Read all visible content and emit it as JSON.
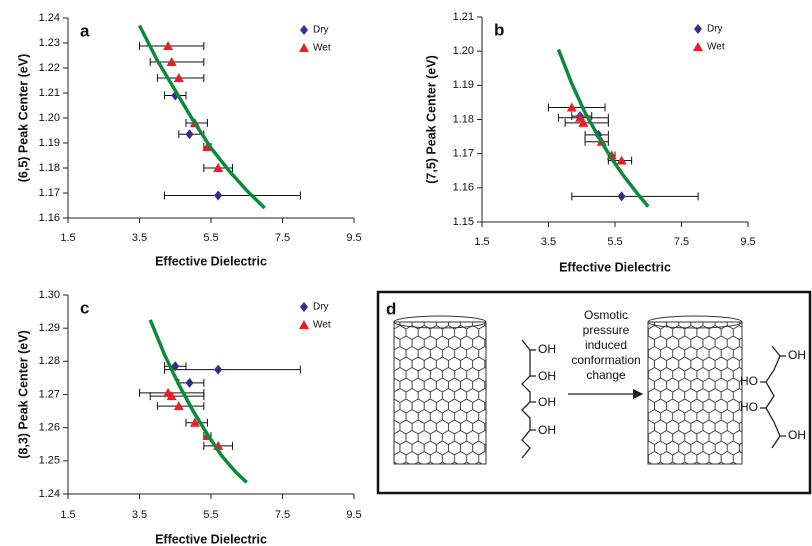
{
  "chart_data": [
    {
      "type": "scatter",
      "label": "a",
      "xlabel": "Effective Dielectric",
      "ylabel": "(6,5) Peak Center (eV)",
      "xlim": [
        1.5,
        9.5
      ],
      "xticks": [
        1.5,
        3.5,
        5.5,
        7.5,
        9.5
      ],
      "ylim": [
        1.16,
        1.24
      ],
      "yticks": [
        1.16,
        1.17,
        1.18,
        1.19,
        {
          "value": 1.2,
          "label": "1.20"
        },
        1.21,
        1.22,
        1.23,
        1.24
      ],
      "legend": "upper right",
      "series": [
        {
          "name": "Dry",
          "color": "#2e3192",
          "marker": "diamond",
          "x": [
            4.5,
            4.9,
            5.7
          ],
          "y": [
            1.209,
            1.1935,
            1.169
          ],
          "x_low": [
            4.2,
            4.6,
            4.2
          ],
          "x_high": [
            4.8,
            5.3,
            8.0
          ]
        },
        {
          "name": "Wet",
          "color": "#ed1c24",
          "marker": "triangle",
          "x": [
            4.3,
            4.4,
            4.6,
            5.05,
            5.4,
            5.7
          ],
          "y": [
            1.2288,
            1.2224,
            1.216,
            1.198,
            1.1884,
            1.18
          ],
          "x_low": [
            3.5,
            3.8,
            4.0,
            4.8,
            5.3,
            5.3
          ],
          "x_high": [
            5.3,
            5.3,
            5.3,
            5.4,
            5.5,
            6.1
          ]
        },
        {
          "type": "line",
          "color": "#0a8a3a",
          "x": [
            3.5,
            4.0,
            4.5,
            5.0,
            5.5,
            6.0,
            6.5,
            7.0
          ],
          "y": [
            1.237,
            1.223,
            1.211,
            1.199,
            1.188,
            1.179,
            1.171,
            1.164
          ]
        }
      ]
    },
    {
      "type": "scatter",
      "label": "b",
      "xlabel": "Effective Dielectric",
      "ylabel": "(7,5) Peak Center (eV)",
      "xlim": [
        1.5,
        9.5
      ],
      "xticks": [
        1.5,
        3.5,
        5.5,
        7.5,
        9.5
      ],
      "ylim": [
        1.15,
        1.21
      ],
      "yticks": [
        1.15,
        1.16,
        1.17,
        1.18,
        1.19,
        {
          "value": 1.2,
          "label": "1.20"
        },
        1.21
      ],
      "legend": "upper right",
      "series": [
        {
          "name": "Dry",
          "color": "#2e3192",
          "marker": "diamond",
          "x": [
            4.45,
            5.0,
            5.7
          ],
          "y": [
            1.181,
            1.1755,
            1.1575
          ],
          "x_low": [
            4.2,
            4.6,
            4.2
          ],
          "x_high": [
            4.8,
            5.3,
            8.0
          ]
        },
        {
          "name": "Wet",
          "color": "#ed1c24",
          "marker": "triangle",
          "x": [
            4.2,
            4.45,
            4.55,
            5.1,
            5.4,
            5.7
          ],
          "y": [
            1.1835,
            1.1805,
            1.179,
            1.1735,
            1.1695,
            1.168
          ],
          "x_low": [
            3.5,
            3.8,
            4.0,
            4.6,
            5.3,
            5.3
          ],
          "x_high": [
            5.2,
            5.3,
            5.3,
            5.3,
            5.5,
            6.0
          ]
        },
        {
          "type": "line",
          "color": "#0a8a3a",
          "x": [
            3.8,
            4.2,
            4.6,
            5.0,
            5.4,
            5.8,
            6.2,
            6.5
          ],
          "y": [
            1.2005,
            1.1905,
            1.182,
            1.175,
            1.1685,
            1.163,
            1.158,
            1.1545
          ]
        }
      ]
    },
    {
      "type": "scatter",
      "label": "c",
      "xlabel": "Effective Dielectric",
      "ylabel": "(8,3) Peak Center (eV)",
      "xlim": [
        1.5,
        9.5
      ],
      "xticks": [
        1.5,
        3.5,
        5.5,
        7.5,
        9.5
      ],
      "ylim": [
        1.24,
        1.3
      ],
      "yticks": [
        1.24,
        1.25,
        1.26,
        1.27,
        1.28,
        1.29,
        {
          "value": 1.3,
          "label": "1.30"
        }
      ],
      "legend": "upper right",
      "series": [
        {
          "name": "Dry",
          "color": "#2e3192",
          "marker": "diamond",
          "x": [
            4.5,
            4.9,
            5.7
          ],
          "y": [
            1.2785,
            1.2735,
            1.2775
          ],
          "x_low": [
            4.2,
            4.6,
            4.2
          ],
          "x_high": [
            4.8,
            5.3,
            8.0
          ]
        },
        {
          "name": "Wet",
          "color": "#ed1c24",
          "marker": "triangle",
          "x": [
            4.3,
            4.4,
            4.6,
            5.05,
            5.4,
            5.7
          ],
          "y": [
            1.2705,
            1.2695,
            1.2665,
            1.2615,
            1.2575,
            1.2545
          ],
          "x_low": [
            3.5,
            3.8,
            4.0,
            4.8,
            5.3,
            5.3
          ],
          "x_high": [
            5.3,
            5.3,
            5.3,
            5.4,
            5.5,
            6.1
          ]
        },
        {
          "type": "line",
          "color": "#0a8a3a",
          "x": [
            3.8,
            4.2,
            4.6,
            5.0,
            5.4,
            5.8,
            6.2,
            6.5
          ],
          "y": [
            1.2925,
            1.282,
            1.273,
            1.265,
            1.258,
            1.2515,
            1.2465,
            1.2435
          ]
        }
      ]
    }
  ],
  "diagram": {
    "label": "d",
    "caption": [
      "Osmotic",
      "pressure",
      "induced",
      "conformation",
      "change"
    ],
    "left_molecule": [
      "OH",
      "OH",
      "OH",
      "OH"
    ],
    "right_molecule": [
      "OH",
      "HO",
      "HO",
      "OH"
    ]
  }
}
